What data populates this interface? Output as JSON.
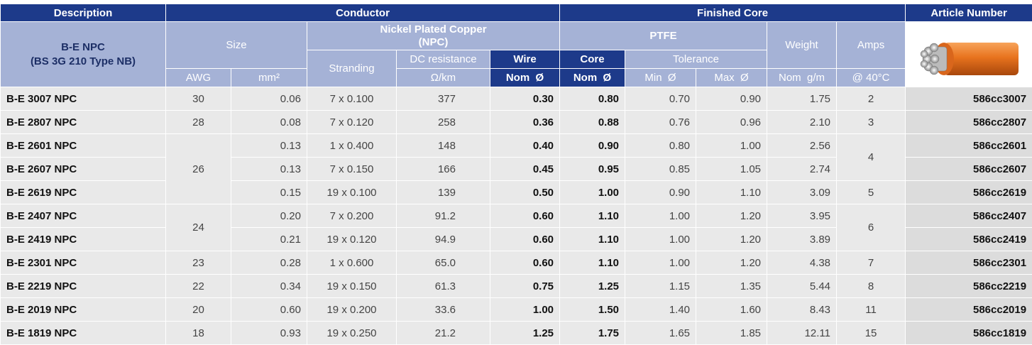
{
  "header": {
    "description": "Description",
    "conductor": "Conductor",
    "finished_core": "Finished Core",
    "article_number": "Article Number",
    "product": "B-E NPC",
    "standard": "(BS 3G 210 Type NB)",
    "size": "Size",
    "npc": "Nickel Plated Copper",
    "npc_abbr": "(NPC)",
    "ptfe": "PTFE",
    "weight": "Weight",
    "amps": "Amps",
    "stranding": "Stranding",
    "dc_resistance": "DC resistance",
    "wire": "Wire",
    "core": "Core",
    "tolerance": "Tolerance",
    "awg": "AWG",
    "mm2": "mm²",
    "ohm_km": "Ω/km",
    "wire_nom": "Nom  Ø",
    "core_nom": "Nom  Ø",
    "min": "Min  Ø",
    "max": "Max  Ø",
    "nom_gm": "Nom  g/m",
    "at_40": "@ 40°C"
  },
  "table": {
    "rows": [
      {
        "description": "B-E 3007 NPC",
        "awg": "30",
        "mm2": "0.06",
        "stranding": "7 x 0.100",
        "resistance": "377",
        "wire_nom": "0.30",
        "core_nom": "0.80",
        "min": "0.70",
        "max": "0.90",
        "weight": "1.75",
        "amps": "2",
        "article": "586cc3007"
      },
      {
        "description": "B-E 2807 NPC",
        "awg": "28",
        "mm2": "0.08",
        "stranding": "7 x 0.120",
        "resistance": "258",
        "wire_nom": "0.36",
        "core_nom": "0.88",
        "min": "0.76",
        "max": "0.96",
        "weight": "2.10",
        "amps": "3",
        "article": "586cc2807"
      },
      {
        "description": "B-E 2601 NPC",
        "awg": "26",
        "mm2": "0.13",
        "stranding": "1 x 0.400",
        "resistance": "148",
        "wire_nom": "0.40",
        "core_nom": "0.90",
        "min": "0.80",
        "max": "1.00",
        "weight": "2.56",
        "amps": "4",
        "article": "586cc2601"
      },
      {
        "description": "B-E 2607 NPC",
        "mm2": "0.13",
        "stranding": "7 x 0.150",
        "resistance": "166",
        "wire_nom": "0.45",
        "core_nom": "0.95",
        "min": "0.85",
        "max": "1.05",
        "weight": "2.74",
        "article": "586cc2607"
      },
      {
        "description": "B-E 2619 NPC",
        "mm2": "0.15",
        "stranding": "19 x 0.100",
        "resistance": "139",
        "wire_nom": "0.50",
        "core_nom": "1.00",
        "min": "0.90",
        "max": "1.10",
        "weight": "3.09",
        "amps": "5",
        "article": "586cc2619"
      },
      {
        "description": "B-E 2407 NPC",
        "awg": "24",
        "mm2": "0.20",
        "stranding": "7 x 0.200",
        "resistance": "91.2",
        "wire_nom": "0.60",
        "core_nom": "1.10",
        "min": "1.00",
        "max": "1.20",
        "weight": "3.95",
        "amps": "6",
        "article": "586cc2407"
      },
      {
        "description": "B-E 2419 NPC",
        "mm2": "0.21",
        "stranding": "19 x 0.120",
        "resistance": "94.9",
        "wire_nom": "0.60",
        "core_nom": "1.10",
        "min": "1.00",
        "max": "1.20",
        "weight": "3.89",
        "article": "586cc2419"
      },
      {
        "description": "B-E 2301 NPC",
        "awg": "23",
        "mm2": "0.28",
        "stranding": "1 x 0.600",
        "resistance": "65.0",
        "wire_nom": "0.60",
        "core_nom": "1.10",
        "min": "1.00",
        "max": "1.20",
        "weight": "4.38",
        "amps": "7",
        "article": "586cc2301"
      },
      {
        "description": "B-E 2219 NPC",
        "awg": "22",
        "mm2": "0.34",
        "stranding": "19 x 0.150",
        "resistance": "61.3",
        "wire_nom": "0.75",
        "core_nom": "1.25",
        "min": "1.15",
        "max": "1.35",
        "weight": "5.44",
        "amps": "8",
        "article": "586cc2219"
      },
      {
        "description": "B-E 2019 NPC",
        "awg": "20",
        "mm2": "0.60",
        "stranding": "19 x 0.200",
        "resistance": "33.6",
        "wire_nom": "1.00",
        "core_nom": "1.50",
        "min": "1.40",
        "max": "1.60",
        "weight": "8.43",
        "amps": "11",
        "article": "586cc2019"
      },
      {
        "description": "B-E 1819 NPC",
        "awg": "18",
        "mm2": "0.93",
        "stranding": "19 x 0.250",
        "resistance": "21.2",
        "wire_nom": "1.25",
        "core_nom": "1.75",
        "min": "1.65",
        "max": "1.85",
        "weight": "12.11",
        "amps": "15",
        "article": "586cc1819"
      }
    ]
  }
}
